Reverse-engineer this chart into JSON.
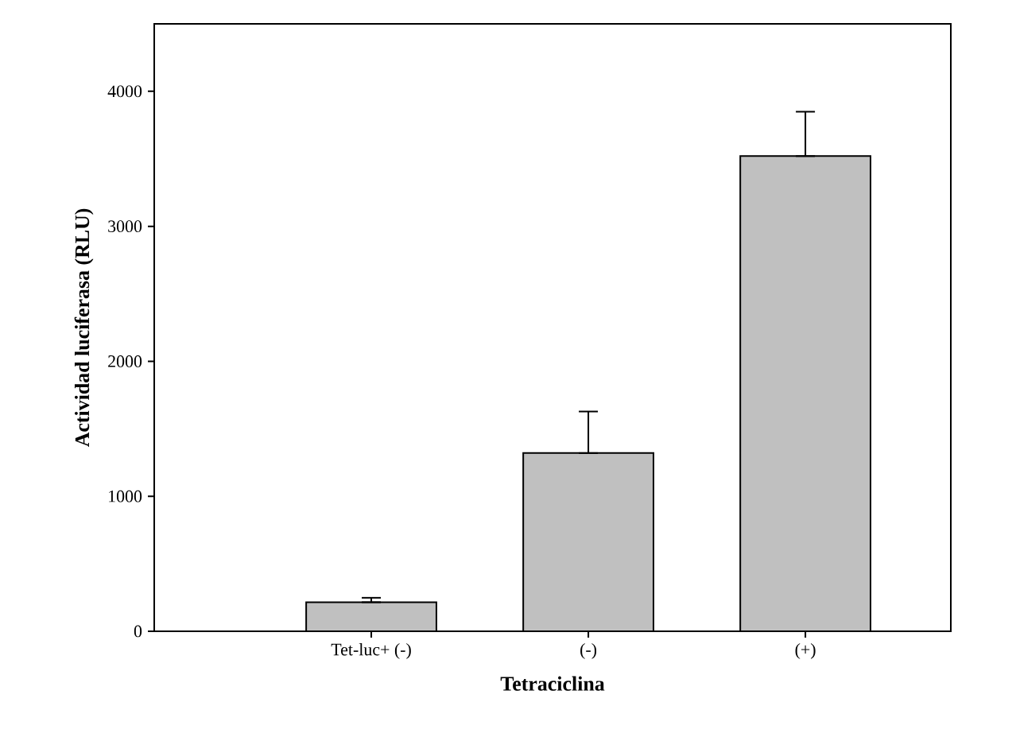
{
  "chart_data": {
    "type": "bar",
    "xlabel": "Tetraciclina",
    "ylabel": "Actividad luciferasa (RLU)",
    "categories": [
      "Tet-luc+ (-)",
      "(-)",
      "(+)"
    ],
    "values": [
      215,
      1320,
      3520
    ],
    "errors": [
      [
        215,
        248
      ],
      [
        1320,
        1628
      ],
      [
        3520,
        3849
      ]
    ],
    "color": "#c0c0c0",
    "ylim": [
      0,
      4500
    ],
    "yticks": [
      0,
      1000,
      2000,
      3000,
      4000
    ],
    "grid": false
  }
}
